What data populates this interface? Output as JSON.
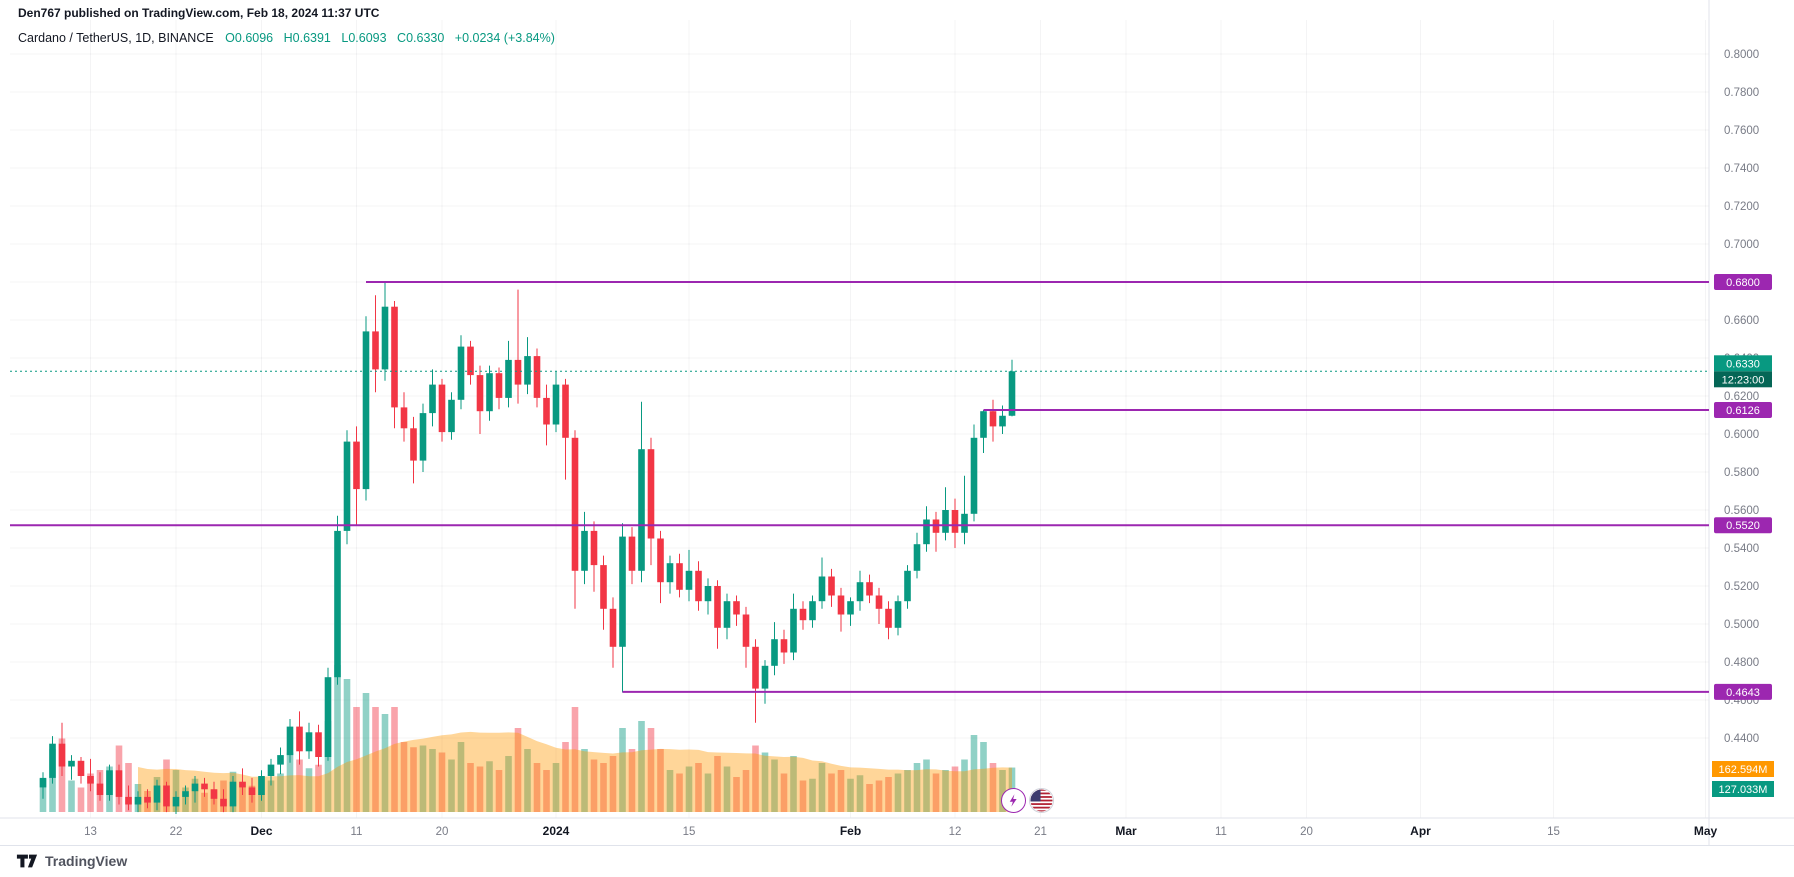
{
  "meta": {
    "publish_line": "Den767 published on TradingView.com, Feb 18, 2024 11:37 UTC",
    "symbol_title": "Cardano / TetherUS, 1D, BINANCE",
    "ohlc": {
      "open": "O0.6096",
      "high": "H0.6391",
      "low": "L0.6093",
      "close": "C0.6330",
      "change": "+0.0234 (+3.84%)"
    },
    "brand": "TradingView"
  },
  "colors": {
    "up": "#089981",
    "down": "#f23645",
    "vol_up": "rgba(8,153,129,0.45)",
    "vol_down": "rgba(242,54,69,0.45)",
    "vol_ma_fill": "rgba(255,152,0,0.40)",
    "level": "#9c27b0",
    "price_label_bg": "#089981",
    "countdown_bg": "#056656",
    "vol_ma_label_bg": "#ff9800",
    "vol_label_bg": "#089981",
    "axis_text": "#787b86",
    "major_text": "#131722",
    "grid": "rgba(42,46,57,0.05)",
    "axis_border": "#e0e3eb"
  },
  "chart_data": {
    "type": "candlestick",
    "title": "Cardano / TetherUS, 1D, BINANCE",
    "symbol": "ADAUSDT",
    "interval": "1D",
    "exchange": "BINANCE",
    "last_price": {
      "value": "0.6330",
      "countdown": "12:23:00"
    },
    "volume_labels": {
      "ma": "162.594M",
      "current": "127.033M"
    },
    "levels": [
      {
        "price": 0.68,
        "label": "0.6800",
        "start_index": 34
      },
      {
        "price": 0.6126,
        "label": "0.6126",
        "start_index": 99
      },
      {
        "price": 0.552,
        "label": "0.5520",
        "start_index": null
      },
      {
        "price": 0.4643,
        "label": "0.4643",
        "start_index": 61
      }
    ],
    "price_scale_labels": [
      "0.8000",
      "0.7800",
      "0.7600",
      "0.7400",
      "0.7200",
      "0.7000",
      "0.6800",
      "0.6600",
      "0.6400",
      "0.6200",
      "0.6000",
      "0.5800",
      "0.5600",
      "0.5400",
      "0.5200",
      "0.5000",
      "0.4800",
      "0.4600",
      "0.4400"
    ],
    "time_ticks": [
      {
        "label": "13",
        "index": 5,
        "major": false
      },
      {
        "label": "22",
        "index": 14,
        "major": false
      },
      {
        "label": "Dec",
        "index": 23,
        "major": true
      },
      {
        "label": "11",
        "index": 33,
        "major": false
      },
      {
        "label": "20",
        "index": 42,
        "major": false
      },
      {
        "label": "2024",
        "index": 54,
        "major": true
      },
      {
        "label": "15",
        "index": 68,
        "major": false
      },
      {
        "label": "Feb",
        "index": 85,
        "major": true
      },
      {
        "label": "12",
        "index": 96,
        "major": false
      },
      {
        "label": "21",
        "index": 105,
        "major": false
      },
      {
        "label": "Mar",
        "index": 114,
        "major": true
      },
      {
        "label": "11",
        "index": 124,
        "major": false
      },
      {
        "label": "20",
        "index": 133,
        "major": false
      },
      {
        "label": "Apr",
        "index": 145,
        "major": true
      },
      {
        "label": "15",
        "index": 159,
        "major": false
      },
      {
        "label": "May",
        "index": 175,
        "major": true
      }
    ],
    "columns": [
      "date",
      "open",
      "high",
      "low",
      "close",
      "volume_millions"
    ],
    "candles": [
      [
        "2023-11-08",
        0.414,
        0.422,
        0.408,
        0.419,
        95
      ],
      [
        "2023-11-09",
        0.419,
        0.441,
        0.416,
        0.437,
        180
      ],
      [
        "2023-11-10",
        0.437,
        0.448,
        0.42,
        0.425,
        210
      ],
      [
        "2023-11-11",
        0.425,
        0.431,
        0.418,
        0.428,
        90
      ],
      [
        "2023-11-12",
        0.428,
        0.43,
        0.416,
        0.42,
        70
      ],
      [
        "2023-11-13",
        0.42,
        0.429,
        0.412,
        0.416,
        110
      ],
      [
        "2023-11-14",
        0.416,
        0.422,
        0.407,
        0.41,
        120
      ],
      [
        "2023-11-15",
        0.41,
        0.426,
        0.407,
        0.423,
        130
      ],
      [
        "2023-11-16",
        0.423,
        0.426,
        0.405,
        0.409,
        190
      ],
      [
        "2023-11-17",
        0.409,
        0.415,
        0.402,
        0.405,
        140
      ],
      [
        "2023-11-18",
        0.405,
        0.412,
        0.401,
        0.409,
        80
      ],
      [
        "2023-11-19",
        0.409,
        0.413,
        0.403,
        0.406,
        60
      ],
      [
        "2023-11-20",
        0.406,
        0.418,
        0.402,
        0.415,
        100
      ],
      [
        "2023-11-21",
        0.415,
        0.417,
        0.401,
        0.404,
        150
      ],
      [
        "2023-11-22",
        0.404,
        0.412,
        0.4,
        0.409,
        120
      ],
      [
        "2023-11-23",
        0.409,
        0.415,
        0.405,
        0.412,
        70
      ],
      [
        "2023-11-24",
        0.412,
        0.42,
        0.406,
        0.416,
        95
      ],
      [
        "2023-11-25",
        0.416,
        0.419,
        0.409,
        0.413,
        55
      ],
      [
        "2023-11-26",
        0.413,
        0.417,
        0.405,
        0.408,
        65
      ],
      [
        "2023-11-27",
        0.408,
        0.413,
        0.401,
        0.404,
        90
      ],
      [
        "2023-11-28",
        0.404,
        0.42,
        0.401,
        0.417,
        115
      ],
      [
        "2023-11-29",
        0.417,
        0.424,
        0.41,
        0.414,
        85
      ],
      [
        "2023-11-30",
        0.414,
        0.419,
        0.406,
        0.41,
        75
      ],
      [
        "2023-12-01",
        0.41,
        0.423,
        0.407,
        0.42,
        100
      ],
      [
        "2023-12-02",
        0.42,
        0.429,
        0.415,
        0.426,
        90
      ],
      [
        "2023-12-03",
        0.426,
        0.435,
        0.421,
        0.431,
        110
      ],
      [
        "2023-12-04",
        0.431,
        0.45,
        0.427,
        0.446,
        170
      ],
      [
        "2023-12-05",
        0.446,
        0.454,
        0.426,
        0.433,
        150
      ],
      [
        "2023-12-06",
        0.433,
        0.448,
        0.429,
        0.443,
        125
      ],
      [
        "2023-12-07",
        0.443,
        0.447,
        0.425,
        0.43,
        135
      ],
      [
        "2023-12-08",
        0.43,
        0.477,
        0.428,
        0.472,
        260
      ],
      [
        "2023-12-09",
        0.472,
        0.557,
        0.468,
        0.549,
        420
      ],
      [
        "2023-12-10",
        0.549,
        0.602,
        0.542,
        0.596,
        380
      ],
      [
        "2023-12-11",
        0.596,
        0.604,
        0.552,
        0.571,
        300
      ],
      [
        "2023-12-12",
        0.571,
        0.662,
        0.565,
        0.654,
        340
      ],
      [
        "2023-12-13",
        0.654,
        0.673,
        0.622,
        0.634,
        300
      ],
      [
        "2023-12-14",
        0.634,
        0.68,
        0.628,
        0.667,
        280
      ],
      [
        "2023-12-15",
        0.667,
        0.67,
        0.603,
        0.614,
        300
      ],
      [
        "2023-12-16",
        0.614,
        0.622,
        0.596,
        0.603,
        200
      ],
      [
        "2023-12-17",
        0.603,
        0.609,
        0.574,
        0.586,
        185
      ],
      [
        "2023-12-18",
        0.586,
        0.616,
        0.58,
        0.611,
        190
      ],
      [
        "2023-12-19",
        0.611,
        0.634,
        0.604,
        0.626,
        180
      ],
      [
        "2023-12-20",
        0.626,
        0.629,
        0.596,
        0.601,
        170
      ],
      [
        "2023-12-21",
        0.601,
        0.622,
        0.597,
        0.618,
        150
      ],
      [
        "2023-12-22",
        0.618,
        0.652,
        0.613,
        0.646,
        200
      ],
      [
        "2023-12-23",
        0.646,
        0.649,
        0.626,
        0.631,
        140
      ],
      [
        "2023-12-24",
        0.631,
        0.636,
        0.6,
        0.612,
        130
      ],
      [
        "2023-12-25",
        0.612,
        0.636,
        0.607,
        0.632,
        145
      ],
      [
        "2023-12-26",
        0.632,
        0.635,
        0.613,
        0.619,
        120
      ],
      [
        "2023-12-27",
        0.619,
        0.649,
        0.614,
        0.639,
        160
      ],
      [
        "2023-12-28",
        0.639,
        0.676,
        0.616,
        0.626,
        240
      ],
      [
        "2023-12-29",
        0.626,
        0.651,
        0.621,
        0.641,
        180
      ],
      [
        "2023-12-30",
        0.641,
        0.645,
        0.614,
        0.619,
        140
      ],
      [
        "2023-12-31",
        0.619,
        0.626,
        0.594,
        0.605,
        120
      ],
      [
        "2024-01-01",
        0.605,
        0.633,
        0.601,
        0.626,
        140
      ],
      [
        "2024-01-02",
        0.626,
        0.629,
        0.576,
        0.598,
        200
      ],
      [
        "2024-01-03",
        0.598,
        0.602,
        0.508,
        0.528,
        300
      ],
      [
        "2024-01-04",
        0.528,
        0.559,
        0.521,
        0.549,
        180
      ],
      [
        "2024-01-05",
        0.549,
        0.554,
        0.517,
        0.531,
        150
      ],
      [
        "2024-01-06",
        0.531,
        0.536,
        0.497,
        0.508,
        140
      ],
      [
        "2024-01-07",
        0.508,
        0.514,
        0.477,
        0.488,
        160
      ],
      [
        "2024-01-08",
        0.488,
        0.553,
        0.464,
        0.546,
        240
      ],
      [
        "2024-01-09",
        0.546,
        0.551,
        0.521,
        0.528,
        180
      ],
      [
        "2024-01-10",
        0.528,
        0.617,
        0.522,
        0.592,
        260
      ],
      [
        "2024-01-11",
        0.592,
        0.598,
        0.531,
        0.545,
        240
      ],
      [
        "2024-01-12",
        0.545,
        0.549,
        0.511,
        0.522,
        180
      ],
      [
        "2024-01-13",
        0.522,
        0.536,
        0.516,
        0.532,
        120
      ],
      [
        "2024-01-14",
        0.532,
        0.537,
        0.514,
        0.518,
        110
      ],
      [
        "2024-01-15",
        0.518,
        0.539,
        0.512,
        0.528,
        130
      ],
      [
        "2024-01-16",
        0.528,
        0.533,
        0.507,
        0.512,
        140
      ],
      [
        "2024-01-17",
        0.512,
        0.524,
        0.505,
        0.52,
        110
      ],
      [
        "2024-01-18",
        0.52,
        0.523,
        0.487,
        0.498,
        160
      ],
      [
        "2024-01-19",
        0.498,
        0.516,
        0.492,
        0.512,
        130
      ],
      [
        "2024-01-20",
        0.512,
        0.515,
        0.499,
        0.505,
        100
      ],
      [
        "2024-01-21",
        0.505,
        0.509,
        0.477,
        0.488,
        120
      ],
      [
        "2024-01-22",
        0.488,
        0.492,
        0.448,
        0.466,
        190
      ],
      [
        "2024-01-23",
        0.466,
        0.481,
        0.458,
        0.478,
        170
      ],
      [
        "2024-01-24",
        0.478,
        0.501,
        0.473,
        0.492,
        150
      ],
      [
        "2024-01-25",
        0.492,
        0.497,
        0.479,
        0.485,
        110
      ],
      [
        "2024-01-26",
        0.485,
        0.516,
        0.481,
        0.508,
        160
      ],
      [
        "2024-01-27",
        0.508,
        0.512,
        0.497,
        0.502,
        90
      ],
      [
        "2024-01-28",
        0.502,
        0.515,
        0.498,
        0.512,
        95
      ],
      [
        "2024-01-29",
        0.512,
        0.535,
        0.508,
        0.525,
        140
      ],
      [
        "2024-01-30",
        0.525,
        0.529,
        0.509,
        0.515,
        110
      ],
      [
        "2024-01-31",
        0.515,
        0.519,
        0.496,
        0.505,
        120
      ],
      [
        "2024-02-01",
        0.505,
        0.514,
        0.499,
        0.512,
        95
      ],
      [
        "2024-02-02",
        0.512,
        0.528,
        0.507,
        0.522,
        105
      ],
      [
        "2024-02-03",
        0.522,
        0.526,
        0.511,
        0.515,
        80
      ],
      [
        "2024-02-04",
        0.515,
        0.519,
        0.5,
        0.508,
        90
      ],
      [
        "2024-02-05",
        0.508,
        0.512,
        0.492,
        0.498,
        100
      ],
      [
        "2024-02-06",
        0.498,
        0.515,
        0.494,
        0.512,
        110
      ],
      [
        "2024-02-07",
        0.512,
        0.531,
        0.508,
        0.528,
        120
      ],
      [
        "2024-02-08",
        0.528,
        0.548,
        0.524,
        0.542,
        140
      ],
      [
        "2024-02-09",
        0.542,
        0.562,
        0.538,
        0.555,
        150
      ],
      [
        "2024-02-10",
        0.555,
        0.559,
        0.538,
        0.548,
        110
      ],
      [
        "2024-02-11",
        0.548,
        0.572,
        0.544,
        0.56,
        120
      ],
      [
        "2024-02-12",
        0.56,
        0.566,
        0.54,
        0.548,
        130
      ],
      [
        "2024-02-13",
        0.548,
        0.578,
        0.542,
        0.558,
        150
      ],
      [
        "2024-02-14",
        0.558,
        0.605,
        0.554,
        0.598,
        220
      ],
      [
        "2024-02-15",
        0.598,
        0.6126,
        0.59,
        0.612,
        200
      ],
      [
        "2024-02-16",
        0.612,
        0.618,
        0.596,
        0.604,
        140
      ],
      [
        "2024-02-17",
        0.604,
        0.615,
        0.6,
        0.6096,
        120
      ],
      [
        "2024-02-18",
        0.6096,
        0.6391,
        0.6093,
        0.633,
        127.033
      ]
    ]
  },
  "badges": [
    {
      "name": "lightning-icon"
    },
    {
      "name": "us-flag-icon"
    }
  ]
}
